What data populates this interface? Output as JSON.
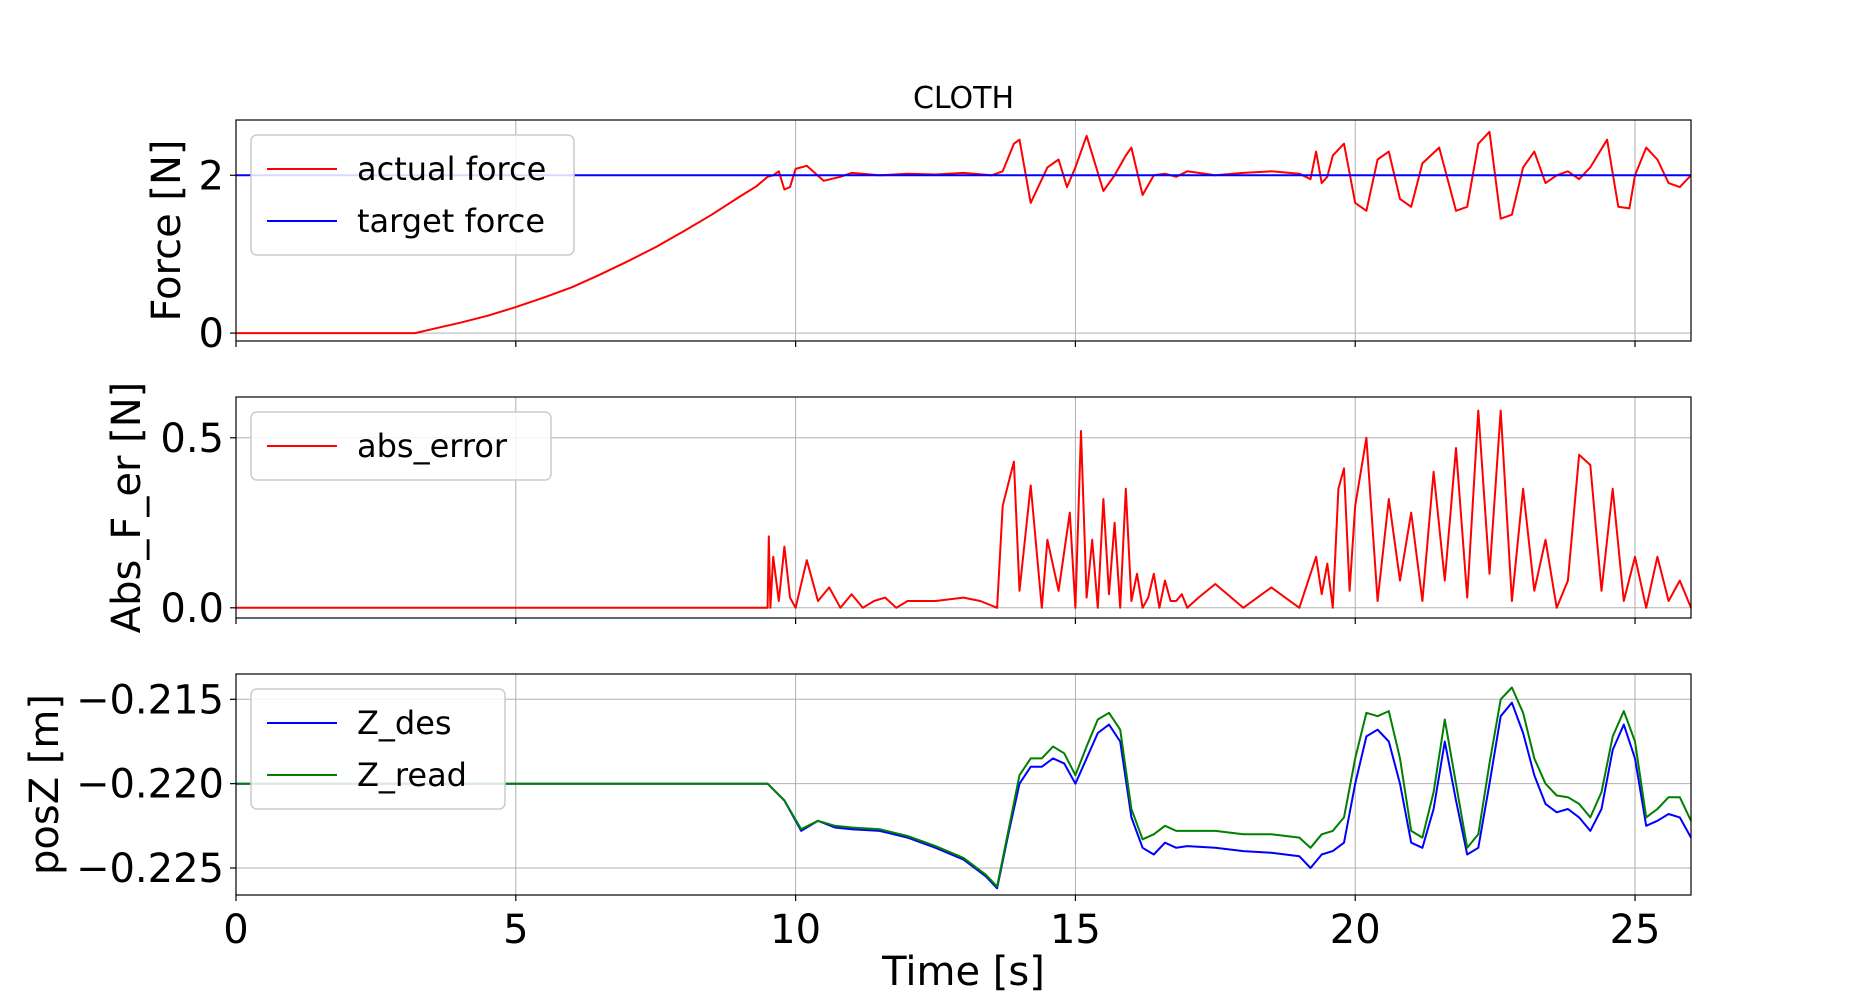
{
  "chart_data": [
    {
      "type": "line",
      "title": "CLOTH",
      "ylabel": "Force [N]",
      "xlim": [
        0,
        26
      ],
      "ylim": [
        -0.1,
        2.7
      ],
      "yticks": [
        0,
        2
      ],
      "ytick_labels": [
        "0",
        "2"
      ],
      "xticks": [
        0,
        5,
        10,
        15,
        20,
        25
      ],
      "grid": true,
      "legend_position": "upper-left",
      "series": [
        {
          "name": "actual force",
          "color": "#ff0000",
          "x": [
            0,
            3.2,
            3.5,
            4,
            4.5,
            5,
            5.5,
            6,
            6.5,
            7,
            7.5,
            8,
            8.5,
            9,
            9.3,
            9.5,
            9.6,
            9.7,
            9.8,
            9.9,
            10.0,
            10.2,
            10.5,
            10.8,
            11.0,
            11.5,
            12.0,
            12.5,
            13.0,
            13.5,
            13.7,
            13.9,
            14.0,
            14.2,
            14.5,
            14.7,
            14.85,
            15.0,
            15.2,
            15.5,
            15.7,
            15.9,
            16.0,
            16.2,
            16.4,
            16.6,
            16.8,
            17.0,
            17.5,
            18.0,
            18.5,
            19.0,
            19.2,
            19.3,
            19.4,
            19.5,
            19.6,
            19.8,
            20.0,
            20.2,
            20.4,
            20.6,
            20.8,
            21.0,
            21.2,
            21.5,
            21.8,
            22.0,
            22.2,
            22.4,
            22.6,
            22.8,
            23.0,
            23.2,
            23.4,
            23.6,
            23.8,
            24.0,
            24.2,
            24.5,
            24.7,
            24.9,
            25.0,
            25.2,
            25.4,
            25.6,
            25.8,
            26.0
          ],
          "y": [
            0,
            0,
            0.05,
            0.13,
            0.22,
            0.33,
            0.45,
            0.58,
            0.74,
            0.91,
            1.09,
            1.29,
            1.5,
            1.73,
            1.86,
            1.98,
            2.0,
            2.05,
            1.82,
            1.85,
            2.08,
            2.12,
            1.93,
            1.98,
            2.03,
            2.0,
            2.02,
            2.01,
            2.03,
            2.0,
            2.05,
            2.4,
            2.45,
            1.65,
            2.1,
            2.2,
            1.85,
            2.1,
            2.5,
            1.8,
            2.0,
            2.25,
            2.35,
            1.75,
            2.0,
            2.02,
            1.98,
            2.05,
            2.0,
            2.03,
            2.05,
            2.02,
            1.95,
            2.3,
            1.9,
            1.98,
            2.25,
            2.4,
            1.65,
            1.55,
            2.2,
            2.3,
            1.7,
            1.6,
            2.15,
            2.35,
            1.55,
            1.6,
            2.4,
            2.55,
            1.45,
            1.5,
            2.1,
            2.3,
            1.9,
            2.0,
            2.05,
            1.95,
            2.1,
            2.45,
            1.6,
            1.58,
            2.0,
            2.35,
            2.2,
            1.9,
            1.85,
            2.0
          ]
        },
        {
          "name": "target force",
          "color": "#0000ff",
          "x": [
            0,
            26
          ],
          "y": [
            2,
            2
          ]
        }
      ]
    },
    {
      "type": "line",
      "ylabel": "Abs_F_er [N]",
      "xlim": [
        0,
        26
      ],
      "ylim": [
        -0.03,
        0.62
      ],
      "yticks": [
        0.0,
        0.5
      ],
      "ytick_labels": [
        "0.0",
        "0.5"
      ],
      "xticks": [
        0,
        5,
        10,
        15,
        20,
        25
      ],
      "grid": true,
      "legend_position": "upper-left",
      "series": [
        {
          "name": "abs_error",
          "color": "#ff0000",
          "x": [
            0,
            9.5,
            9.52,
            9.55,
            9.6,
            9.7,
            9.8,
            9.9,
            10.0,
            10.2,
            10.4,
            10.6,
            10.8,
            11.0,
            11.2,
            11.4,
            11.6,
            11.8,
            12.0,
            12.5,
            13.0,
            13.3,
            13.6,
            13.7,
            13.9,
            14.0,
            14.2,
            14.4,
            14.5,
            14.7,
            14.9,
            15.0,
            15.1,
            15.2,
            15.3,
            15.4,
            15.5,
            15.6,
            15.7,
            15.8,
            15.9,
            16.0,
            16.1,
            16.2,
            16.3,
            16.4,
            16.5,
            16.6,
            16.7,
            16.8,
            16.9,
            17.0,
            17.2,
            17.5,
            18.0,
            18.5,
            19.0,
            19.2,
            19.3,
            19.4,
            19.5,
            19.6,
            19.7,
            19.8,
            19.9,
            20.0,
            20.2,
            20.4,
            20.6,
            20.8,
            21.0,
            21.2,
            21.4,
            21.6,
            21.8,
            22.0,
            22.2,
            22.4,
            22.6,
            22.8,
            23.0,
            23.2,
            23.4,
            23.6,
            23.8,
            24.0,
            24.2,
            24.4,
            24.6,
            24.8,
            25.0,
            25.2,
            25.4,
            25.6,
            25.8,
            26.0
          ],
          "y": [
            0,
            0,
            0.21,
            0.0,
            0.15,
            0.02,
            0.18,
            0.03,
            0.0,
            0.14,
            0.02,
            0.06,
            0.0,
            0.04,
            0.0,
            0.02,
            0.03,
            0.0,
            0.02,
            0.02,
            0.03,
            0.02,
            0.0,
            0.3,
            0.43,
            0.05,
            0.36,
            0.0,
            0.2,
            0.05,
            0.28,
            0.0,
            0.52,
            0.03,
            0.2,
            0.0,
            0.32,
            0.04,
            0.25,
            0.0,
            0.35,
            0.02,
            0.1,
            0.0,
            0.03,
            0.1,
            0.0,
            0.08,
            0.02,
            0.02,
            0.04,
            0.0,
            0.03,
            0.07,
            0.0,
            0.06,
            0.0,
            0.1,
            0.15,
            0.04,
            0.13,
            0.0,
            0.35,
            0.41,
            0.05,
            0.3,
            0.5,
            0.02,
            0.32,
            0.08,
            0.28,
            0.02,
            0.4,
            0.08,
            0.47,
            0.03,
            0.58,
            0.1,
            0.58,
            0.02,
            0.35,
            0.05,
            0.2,
            0.0,
            0.08,
            0.45,
            0.42,
            0.05,
            0.35,
            0.02,
            0.15,
            0.0,
            0.15,
            0.02,
            0.08,
            0.0
          ]
        }
      ]
    },
    {
      "type": "line",
      "ylabel": "posZ [m]",
      "xlabel": "Time [s]",
      "xlim": [
        0,
        26
      ],
      "ylim": [
        -0.2266,
        -0.2135
      ],
      "yticks": [
        -0.225,
        -0.22,
        -0.215
      ],
      "ytick_labels": [
        "−0.225",
        "−0.220",
        "−0.215"
      ],
      "xticks": [
        0,
        5,
        10,
        15,
        20,
        25
      ],
      "xtick_labels": [
        "0",
        "5",
        "10",
        "15",
        "20",
        "25"
      ],
      "grid": true,
      "legend_position": "upper-left",
      "series": [
        {
          "name": "Z_des",
          "color": "#0000ff",
          "x": [
            0,
            9.5,
            9.8,
            10.1,
            10.4,
            10.7,
            11.0,
            11.5,
            12.0,
            12.5,
            13.0,
            13.4,
            13.6,
            13.8,
            14.0,
            14.2,
            14.4,
            14.6,
            14.8,
            15.0,
            15.2,
            15.4,
            15.6,
            15.8,
            16.0,
            16.2,
            16.4,
            16.6,
            16.8,
            17.0,
            17.5,
            18.0,
            18.5,
            19.0,
            19.2,
            19.4,
            19.6,
            19.8,
            20.0,
            20.2,
            20.4,
            20.6,
            20.8,
            21.0,
            21.2,
            21.4,
            21.6,
            21.8,
            22.0,
            22.2,
            22.4,
            22.6,
            22.8,
            23.0,
            23.2,
            23.4,
            23.6,
            23.8,
            24.0,
            24.2,
            24.4,
            24.6,
            24.8,
            25.0,
            25.2,
            25.4,
            25.6,
            25.8,
            26.0
          ],
          "y": [
            -0.22,
            -0.22,
            -0.221,
            -0.2228,
            -0.2222,
            -0.2226,
            -0.2227,
            -0.2228,
            -0.2232,
            -0.2238,
            -0.2245,
            -0.2255,
            -0.2262,
            -0.223,
            -0.22,
            -0.219,
            -0.219,
            -0.2185,
            -0.2188,
            -0.22,
            -0.2185,
            -0.217,
            -0.2165,
            -0.2175,
            -0.222,
            -0.2238,
            -0.2242,
            -0.2235,
            -0.2238,
            -0.2237,
            -0.2238,
            -0.224,
            -0.2241,
            -0.2243,
            -0.225,
            -0.2242,
            -0.224,
            -0.2235,
            -0.22,
            -0.2172,
            -0.2168,
            -0.2175,
            -0.22,
            -0.2235,
            -0.2238,
            -0.2215,
            -0.2175,
            -0.221,
            -0.2242,
            -0.2238,
            -0.22,
            -0.216,
            -0.2152,
            -0.217,
            -0.2195,
            -0.2212,
            -0.2217,
            -0.2215,
            -0.222,
            -0.2228,
            -0.2215,
            -0.218,
            -0.2165,
            -0.2185,
            -0.2225,
            -0.2222,
            -0.2218,
            -0.222,
            -0.2232
          ]
        },
        {
          "name": "Z_read",
          "color": "#008000",
          "x": [
            0,
            9.5,
            9.8,
            10.1,
            10.4,
            10.7,
            11.0,
            11.5,
            12.0,
            12.5,
            13.0,
            13.4,
            13.6,
            13.8,
            14.0,
            14.2,
            14.4,
            14.6,
            14.8,
            15.0,
            15.2,
            15.4,
            15.6,
            15.8,
            16.0,
            16.2,
            16.4,
            16.6,
            16.8,
            17.0,
            17.5,
            18.0,
            18.5,
            19.0,
            19.2,
            19.4,
            19.6,
            19.8,
            20.0,
            20.2,
            20.4,
            20.6,
            20.8,
            21.0,
            21.2,
            21.4,
            21.6,
            21.8,
            22.0,
            22.2,
            22.4,
            22.6,
            22.8,
            23.0,
            23.2,
            23.4,
            23.6,
            23.8,
            24.0,
            24.2,
            24.4,
            24.6,
            24.8,
            25.0,
            25.2,
            25.4,
            25.6,
            25.8,
            26.0
          ],
          "y": [
            -0.22,
            -0.22,
            -0.221,
            -0.2227,
            -0.2222,
            -0.2225,
            -0.2226,
            -0.2227,
            -0.2231,
            -0.2237,
            -0.2244,
            -0.2254,
            -0.2261,
            -0.2228,
            -0.2195,
            -0.2185,
            -0.2185,
            -0.2178,
            -0.2182,
            -0.2195,
            -0.2178,
            -0.2162,
            -0.2158,
            -0.2168,
            -0.2215,
            -0.2233,
            -0.223,
            -0.2225,
            -0.2228,
            -0.2228,
            -0.2228,
            -0.223,
            -0.223,
            -0.2232,
            -0.2238,
            -0.223,
            -0.2228,
            -0.222,
            -0.2185,
            -0.2158,
            -0.216,
            -0.2157,
            -0.2185,
            -0.2228,
            -0.2232,
            -0.2205,
            -0.2162,
            -0.22,
            -0.2238,
            -0.223,
            -0.2188,
            -0.215,
            -0.2143,
            -0.2158,
            -0.2185,
            -0.22,
            -0.2207,
            -0.2208,
            -0.2212,
            -0.222,
            -0.2205,
            -0.2172,
            -0.2157,
            -0.2175,
            -0.222,
            -0.2215,
            -0.2208,
            -0.2208,
            -0.2222
          ]
        }
      ]
    }
  ]
}
